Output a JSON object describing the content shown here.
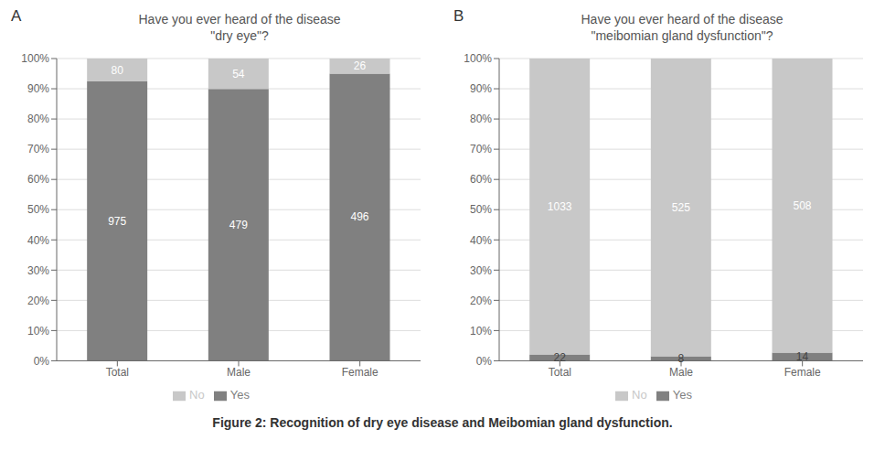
{
  "title": "Figure 2: Recognition of dry eye disease and Meibomian gland dysfunction.",
  "chart_data": [
    {
      "type": "bar",
      "title": "Have you ever heard of the disease\n\"dry eye\"?",
      "annotations": [
        "A"
      ],
      "categories": [
        "Total",
        "Male",
        "Female"
      ],
      "stacked": true,
      "grid": true,
      "legend": "bottom",
      "ylim": [
        0,
        1.0
      ],
      "yticks": [
        {
          "value": 0,
          "label": "0%"
        },
        {
          "value": 0.1,
          "label": "10%"
        },
        {
          "value": 0.2,
          "label": "20%"
        },
        {
          "value": 0.3,
          "label": "30%"
        },
        {
          "value": 0.4,
          "label": "40%"
        },
        {
          "value": 0.5,
          "label": "50%"
        },
        {
          "value": 0.6,
          "label": "60%"
        },
        {
          "value": 0.7,
          "label": "70%"
        },
        {
          "value": 0.8,
          "label": "80%"
        },
        {
          "value": 0.9,
          "label": "90%"
        },
        {
          "value": 1.0,
          "label": "100%"
        }
      ],
      "series": [
        {
          "name": "Yes",
          "color": "#808080",
          "values": [
            0.924,
            0.899,
            0.95
          ],
          "counts": [
            975,
            479,
            496
          ]
        },
        {
          "name": "No",
          "color": "#c8c8c8",
          "values": [
            0.076,
            0.101,
            0.05
          ],
          "counts": [
            80,
            54,
            26
          ]
        }
      ]
    },
    {
      "type": "bar",
      "title": "Have you ever heard of the disease\n\"meibomian gland dysfunction\"?",
      "annotations": [
        "B"
      ],
      "categories": [
        "Total",
        "Male",
        "Female"
      ],
      "stacked": true,
      "grid": true,
      "legend": "bottom",
      "ylim": [
        0,
        1.0
      ],
      "yticks": [
        {
          "value": 0,
          "label": "0%"
        },
        {
          "value": 0.1,
          "label": "10%"
        },
        {
          "value": 0.2,
          "label": "20%"
        },
        {
          "value": 0.3,
          "label": "30%"
        },
        {
          "value": 0.4,
          "label": "40%"
        },
        {
          "value": 0.5,
          "label": "50%"
        },
        {
          "value": 0.6,
          "label": "60%"
        },
        {
          "value": 0.7,
          "label": "70%"
        },
        {
          "value": 0.8,
          "label": "80%"
        },
        {
          "value": 0.9,
          "label": "90%"
        },
        {
          "value": 1.0,
          "label": "100%"
        }
      ],
      "series": [
        {
          "name": "Yes",
          "color": "#808080",
          "values": [
            0.021,
            0.015,
            0.027
          ],
          "counts": [
            22,
            8,
            14
          ]
        },
        {
          "name": "No",
          "color": "#c8c8c8",
          "values": [
            0.979,
            0.985,
            0.973
          ],
          "counts": [
            1033,
            525,
            508
          ]
        }
      ]
    }
  ]
}
